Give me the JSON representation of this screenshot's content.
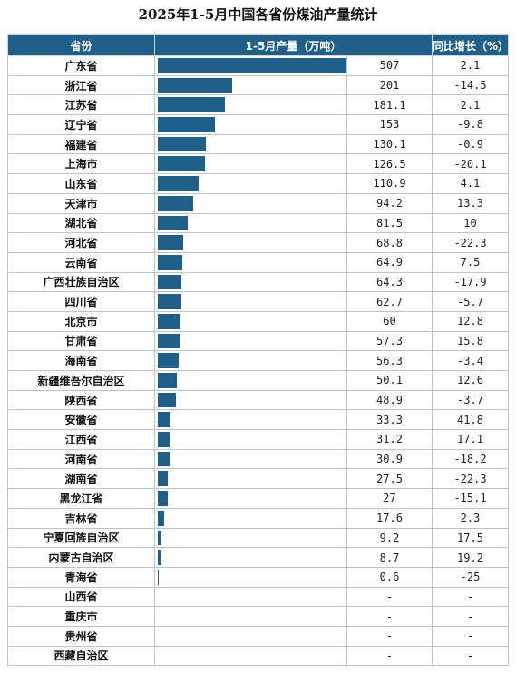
{
  "title": "2025年1-5月中国各省份煤油产量统计",
  "colors": {
    "header_bg": "#1f5f88",
    "bar": "#1f5f88",
    "header_text": "#ffffff"
  },
  "headers": {
    "province": "省份",
    "production": "1-5月产量（万吨）",
    "growth": "同比增长（%）"
  },
  "chart_data": {
    "type": "bar",
    "orientation": "horizontal",
    "title": "2025年1-5月中国各省份煤油产量统计",
    "value_label": "1-5月产量（万吨）",
    "growth_label": "同比增长（%）",
    "max_value": 507,
    "rows": [
      {
        "province": "广东省",
        "production": "507",
        "value": 507,
        "growth": "2.1"
      },
      {
        "province": "浙江省",
        "production": "201",
        "value": 201,
        "growth": "-14.5"
      },
      {
        "province": "江苏省",
        "production": "181.1",
        "value": 181.1,
        "growth": "2.1"
      },
      {
        "province": "辽宁省",
        "production": "153",
        "value": 153,
        "growth": "-9.8"
      },
      {
        "province": "福建省",
        "production": "130.1",
        "value": 130.1,
        "growth": "-0.9"
      },
      {
        "province": "上海市",
        "production": "126.5",
        "value": 126.5,
        "growth": "-20.1"
      },
      {
        "province": "山东省",
        "production": "110.9",
        "value": 110.9,
        "growth": "4.1"
      },
      {
        "province": "天津市",
        "production": "94.2",
        "value": 94.2,
        "growth": "13.3"
      },
      {
        "province": "湖北省",
        "production": "81.5",
        "value": 81.5,
        "growth": "10"
      },
      {
        "province": "河北省",
        "production": "68.8",
        "value": 68.8,
        "growth": "-22.3"
      },
      {
        "province": "云南省",
        "production": "64.9",
        "value": 64.9,
        "growth": "7.5"
      },
      {
        "province": "广西壮族自治区",
        "production": "64.3",
        "value": 64.3,
        "growth": "-17.9"
      },
      {
        "province": "四川省",
        "production": "62.7",
        "value": 62.7,
        "growth": "-5.7"
      },
      {
        "province": "北京市",
        "production": "60",
        "value": 60,
        "growth": "12.8"
      },
      {
        "province": "甘肃省",
        "production": "57.3",
        "value": 57.3,
        "growth": "15.8"
      },
      {
        "province": "海南省",
        "production": "56.3",
        "value": 56.3,
        "growth": "-3.4"
      },
      {
        "province": "新疆维吾尔自治区",
        "production": "50.1",
        "value": 50.1,
        "growth": "12.6"
      },
      {
        "province": "陕西省",
        "production": "48.9",
        "value": 48.9,
        "growth": "-3.7"
      },
      {
        "province": "安徽省",
        "production": "33.3",
        "value": 33.3,
        "growth": "41.8"
      },
      {
        "province": "江西省",
        "production": "31.2",
        "value": 31.2,
        "growth": "17.1"
      },
      {
        "province": "河南省",
        "production": "30.9",
        "value": 30.9,
        "growth": "-18.2"
      },
      {
        "province": "湖南省",
        "production": "27.5",
        "value": 27.5,
        "growth": "-22.3"
      },
      {
        "province": "黑龙江省",
        "production": "27",
        "value": 27,
        "growth": "-15.1"
      },
      {
        "province": "吉林省",
        "production": "17.6",
        "value": 17.6,
        "growth": "2.3"
      },
      {
        "province": "宁夏回族自治区",
        "production": "9.2",
        "value": 9.2,
        "growth": "17.5"
      },
      {
        "province": "内蒙古自治区",
        "production": "8.7",
        "value": 8.7,
        "growth": "19.2"
      },
      {
        "province": "青海省",
        "production": "0.6",
        "value": 0.6,
        "growth": "-25"
      },
      {
        "province": "山西省",
        "production": "-",
        "value": 0,
        "growth": "-"
      },
      {
        "province": "重庆市",
        "production": "-",
        "value": 0,
        "growth": "-"
      },
      {
        "province": "贵州省",
        "production": "-",
        "value": 0,
        "growth": "-"
      },
      {
        "province": "西藏自治区",
        "production": "-",
        "value": 0,
        "growth": "-"
      }
    ]
  }
}
